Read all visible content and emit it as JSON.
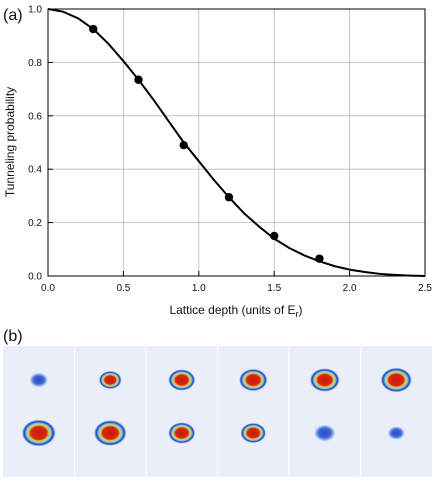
{
  "panel_a_label": "(a)",
  "panel_b_label": "(b)",
  "chart_data": {
    "type": "line",
    "title": "",
    "xlabel": "Lattice depth (units of E",
    "xlabel_sub": "r",
    "xlabel_close": ")",
    "ylabel": "Tunneling probability",
    "xlim": [
      0.0,
      2.5
    ],
    "ylim": [
      0.0,
      1.0
    ],
    "xticks": [
      "0.0",
      "0.5",
      "1.0",
      "1.5",
      "2.0",
      "2.5"
    ],
    "yticks": [
      "0.0",
      "0.2",
      "0.4",
      "0.6",
      "0.8",
      "1.0"
    ],
    "xtick_values": [
      0.0,
      0.5,
      1.0,
      1.5,
      2.0,
      2.5
    ],
    "ytick_values": [
      0.0,
      0.2,
      0.4,
      0.6,
      0.8,
      1.0
    ],
    "grid": true,
    "series": [
      {
        "kind": "curve",
        "x": [
          0.0,
          0.1,
          0.2,
          0.3,
          0.4,
          0.5,
          0.6,
          0.7,
          0.8,
          0.9,
          1.0,
          1.1,
          1.2,
          1.3,
          1.4,
          1.5,
          1.6,
          1.7,
          1.8,
          1.9,
          2.0,
          2.1,
          2.2,
          2.3,
          2.4,
          2.5
        ],
        "y": [
          1.0,
          0.99,
          0.965,
          0.925,
          0.87,
          0.805,
          0.735,
          0.66,
          0.58,
          0.5,
          0.43,
          0.36,
          0.295,
          0.235,
          0.185,
          0.14,
          0.105,
          0.077,
          0.055,
          0.037,
          0.024,
          0.015,
          0.008,
          0.004,
          0.0015,
          0.0
        ]
      },
      {
        "kind": "points",
        "x": [
          0.3,
          0.6,
          0.9,
          1.2,
          1.5,
          1.8
        ],
        "y": [
          0.925,
          0.735,
          0.49,
          0.295,
          0.15,
          0.065
        ]
      }
    ]
  },
  "panel_b": {
    "top_row_spot_sizes": [
      0.3,
      0.45,
      0.6,
      0.65,
      0.7,
      0.75
    ],
    "bottom_row_spot_sizes": [
      0.85,
      0.8,
      0.6,
      0.55,
      0.4,
      0.25
    ],
    "colors": {
      "background": "#e9eef8",
      "outer": "#1e3fb8",
      "ring": "#7fd4e8",
      "mid": "#e8e84a",
      "core": "#c41c0c"
    }
  }
}
